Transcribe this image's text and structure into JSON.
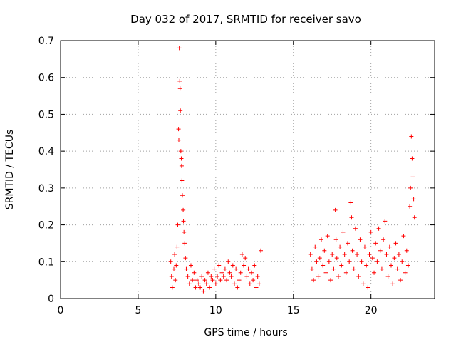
{
  "chart_data": {
    "type": "scatter",
    "title": "Day 032 of 2017, SRMTID for receiver savo",
    "xlabel": "GPS time / hours",
    "ylabel": "SRMTID / TECUs",
    "xlim": [
      0,
      24.1
    ],
    "ylim": [
      0,
      0.7
    ],
    "xticks": [
      "0",
      "5",
      "10",
      "15",
      "20"
    ],
    "yticks": [
      "0",
      "0.1",
      "0.2",
      "0.3",
      "0.4",
      "0.5",
      "0.6",
      "0.7"
    ],
    "grid": true,
    "marker": "plus",
    "series_color": "#ff0000",
    "series": [
      {
        "name": "SRMTID",
        "points": [
          [
            7.1,
            0.1
          ],
          [
            7.15,
            0.06
          ],
          [
            7.2,
            0.03
          ],
          [
            7.3,
            0.08
          ],
          [
            7.35,
            0.12
          ],
          [
            7.4,
            0.05
          ],
          [
            7.45,
            0.09
          ],
          [
            7.5,
            0.14
          ],
          [
            7.55,
            0.2
          ],
          [
            7.6,
            0.46
          ],
          [
            7.62,
            0.43
          ],
          [
            7.65,
            0.68
          ],
          [
            7.68,
            0.59
          ],
          [
            7.7,
            0.57
          ],
          [
            7.72,
            0.51
          ],
          [
            7.75,
            0.4
          ],
          [
            7.78,
            0.38
          ],
          [
            7.8,
            0.36
          ],
          [
            7.82,
            0.32
          ],
          [
            7.85,
            0.28
          ],
          [
            7.9,
            0.24
          ],
          [
            7.92,
            0.21
          ],
          [
            7.95,
            0.18
          ],
          [
            8.0,
            0.15
          ],
          [
            8.05,
            0.11
          ],
          [
            8.1,
            0.08
          ],
          [
            8.2,
            0.06
          ],
          [
            8.3,
            0.04
          ],
          [
            8.4,
            0.09
          ],
          [
            8.5,
            0.05
          ],
          [
            8.6,
            0.07
          ],
          [
            8.7,
            0.03
          ],
          [
            8.8,
            0.05
          ],
          [
            8.9,
            0.04
          ],
          [
            9.0,
            0.03
          ],
          [
            9.1,
            0.06
          ],
          [
            9.2,
            0.02
          ],
          [
            9.3,
            0.05
          ],
          [
            9.4,
            0.04
          ],
          [
            9.5,
            0.07
          ],
          [
            9.6,
            0.03
          ],
          [
            9.7,
            0.06
          ],
          [
            9.8,
            0.05
          ],
          [
            9.9,
            0.08
          ],
          [
            10.0,
            0.04
          ],
          [
            10.1,
            0.06
          ],
          [
            10.2,
            0.09
          ],
          [
            10.3,
            0.05
          ],
          [
            10.4,
            0.07
          ],
          [
            10.5,
            0.06
          ],
          [
            10.6,
            0.08
          ],
          [
            10.7,
            0.05
          ],
          [
            10.8,
            0.1
          ],
          [
            10.9,
            0.07
          ],
          [
            11.0,
            0.06
          ],
          [
            11.1,
            0.09
          ],
          [
            11.2,
            0.04
          ],
          [
            11.3,
            0.08
          ],
          [
            11.4,
            0.03
          ],
          [
            11.5,
            0.05
          ],
          [
            11.6,
            0.07
          ],
          [
            11.7,
            0.12
          ],
          [
            11.8,
            0.09
          ],
          [
            11.9,
            0.11
          ],
          [
            12.0,
            0.06
          ],
          [
            12.1,
            0.08
          ],
          [
            12.2,
            0.04
          ],
          [
            12.3,
            0.07
          ],
          [
            12.4,
            0.05
          ],
          [
            12.5,
            0.09
          ],
          [
            12.6,
            0.03
          ],
          [
            12.7,
            0.06
          ],
          [
            12.8,
            0.04
          ],
          [
            12.9,
            0.13
          ],
          [
            16.1,
            0.12
          ],
          [
            16.2,
            0.08
          ],
          [
            16.3,
            0.05
          ],
          [
            16.4,
            0.14
          ],
          [
            16.5,
            0.1
          ],
          [
            16.6,
            0.06
          ],
          [
            16.7,
            0.11
          ],
          [
            16.8,
            0.16
          ],
          [
            16.9,
            0.09
          ],
          [
            17.0,
            0.13
          ],
          [
            17.1,
            0.07
          ],
          [
            17.2,
            0.17
          ],
          [
            17.3,
            0.1
          ],
          [
            17.4,
            0.05
          ],
          [
            17.5,
            0.12
          ],
          [
            17.6,
            0.08
          ],
          [
            17.7,
            0.24
          ],
          [
            17.75,
            0.16
          ],
          [
            17.8,
            0.11
          ],
          [
            17.9,
            0.06
          ],
          [
            18.0,
            0.14
          ],
          [
            18.1,
            0.09
          ],
          [
            18.2,
            0.18
          ],
          [
            18.3,
            0.12
          ],
          [
            18.4,
            0.07
          ],
          [
            18.5,
            0.15
          ],
          [
            18.6,
            0.1
          ],
          [
            18.7,
            0.26
          ],
          [
            18.75,
            0.22
          ],
          [
            18.8,
            0.13
          ],
          [
            18.9,
            0.08
          ],
          [
            19.0,
            0.19
          ],
          [
            19.1,
            0.12
          ],
          [
            19.2,
            0.06
          ],
          [
            19.3,
            0.16
          ],
          [
            19.4,
            0.1
          ],
          [
            19.5,
            0.04
          ],
          [
            19.6,
            0.14
          ],
          [
            19.7,
            0.09
          ],
          [
            19.8,
            0.03
          ],
          [
            19.9,
            0.12
          ],
          [
            20.0,
            0.18
          ],
          [
            20.1,
            0.11
          ],
          [
            20.2,
            0.07
          ],
          [
            20.3,
            0.15
          ],
          [
            20.4,
            0.1
          ],
          [
            20.5,
            0.19
          ],
          [
            20.6,
            0.13
          ],
          [
            20.7,
            0.08
          ],
          [
            20.8,
            0.16
          ],
          [
            20.9,
            0.21
          ],
          [
            21.0,
            0.12
          ],
          [
            21.1,
            0.06
          ],
          [
            21.2,
            0.14
          ],
          [
            21.3,
            0.09
          ],
          [
            21.4,
            0.04
          ],
          [
            21.5,
            0.11
          ],
          [
            21.6,
            0.15
          ],
          [
            21.7,
            0.08
          ],
          [
            21.8,
            0.12
          ],
          [
            21.9,
            0.05
          ],
          [
            22.0,
            0.1
          ],
          [
            22.1,
            0.17
          ],
          [
            22.2,
            0.07
          ],
          [
            22.3,
            0.13
          ],
          [
            22.4,
            0.09
          ],
          [
            22.5,
            0.25
          ],
          [
            22.55,
            0.3
          ],
          [
            22.6,
            0.44
          ],
          [
            22.65,
            0.38
          ],
          [
            22.7,
            0.33
          ],
          [
            22.75,
            0.27
          ],
          [
            22.8,
            0.22
          ]
        ]
      }
    ]
  }
}
